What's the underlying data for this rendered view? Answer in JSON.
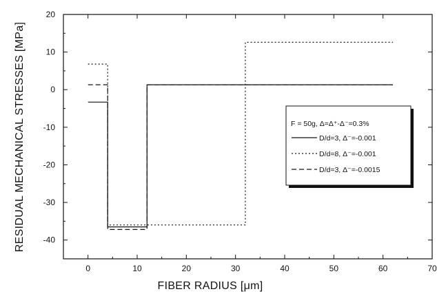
{
  "chart_data": {
    "type": "line",
    "xlabel": "FIBER RADIUS [μm]",
    "ylabel": "RESIDUAL MECHANICAL STRESSES [MPa]",
    "xlim": [
      -5,
      70
    ],
    "ylim": [
      -45,
      20
    ],
    "xticks": [
      0,
      10,
      20,
      30,
      40,
      50,
      60,
      70
    ],
    "xtick_labels": [
      "0",
      "10",
      "20",
      "30",
      "40",
      "50",
      "60",
      "70"
    ],
    "yticks": [
      -40,
      -30,
      -20,
      -10,
      0,
      10,
      20
    ],
    "ytick_labels": [
      "-40",
      "-30",
      "-20",
      "-10",
      "0",
      "10",
      "20"
    ],
    "grid": false,
    "legend_position": "right",
    "legend_title": "F = 50g, Δ=Δ⁺-Δ⁻=0.3%",
    "series": [
      {
        "name": "D/d=3, Δ⁻=-0.001",
        "style": "solid",
        "x": [
          0,
          4,
          4,
          12,
          12,
          62
        ],
        "y": [
          -3.3,
          -3.3,
          -36.5,
          -36.5,
          1.3,
          1.3
        ]
      },
      {
        "name": "D/d=8, Δ⁻=-0.001",
        "style": "dotted",
        "x": [
          0,
          4,
          4,
          32,
          32,
          62
        ],
        "y": [
          6.8,
          6.8,
          -36,
          -36,
          12.6,
          12.6
        ]
      },
      {
        "name": "D/d=3, Δ⁻=-0.0015",
        "style": "dashed",
        "x": [
          0,
          4,
          4,
          12,
          12,
          62
        ],
        "y": [
          1.3,
          1.3,
          -37.2,
          -37.2,
          1.3,
          1.3
        ]
      }
    ]
  }
}
